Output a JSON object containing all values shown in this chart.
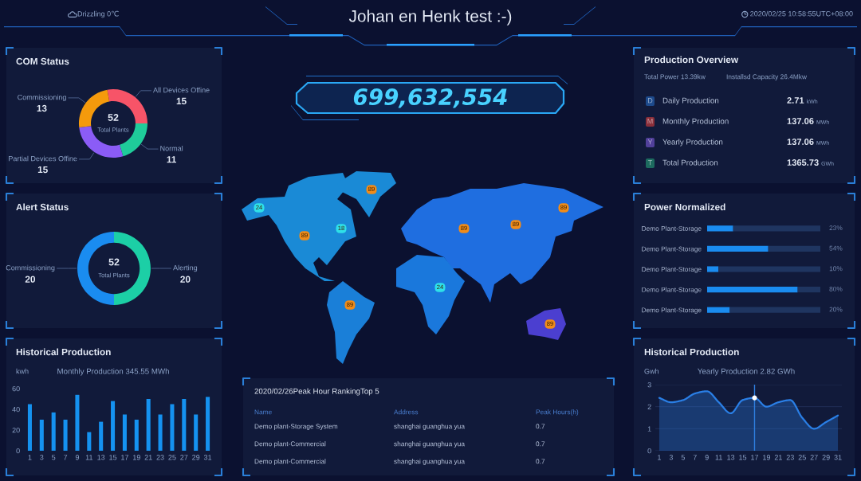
{
  "chart_data": [
    {
      "type": "other",
      "title": "Johan en Henk test :-)",
      "annotations": [
        "Drizzling 0℃",
        "2020/02/25 10:58:55UTC+08:00"
      ]
    },
    {
      "type": "donut",
      "title": "COM Status",
      "categories": [
        "All Devices Offine",
        "Normal",
        "Partial Devices Offine",
        "Commissioning"
      ],
      "values": [
        15,
        11,
        15,
        13
      ],
      "colors": [
        "#f75468",
        "#1fcc9a",
        "#8b5cf6",
        "#f59a0c"
      ],
      "data_labels": true,
      "annotations": [
        "52",
        "Total Plants"
      ]
    },
    {
      "type": "other",
      "annotations": [
        "699,632,554"
      ]
    },
    {
      "type": "other",
      "title": "Production Overview",
      "annotations": [
        "Total Power 13.39kw",
        "Installsd Capacity 26.4Mkw",
        "D",
        "Daily Production",
        "2.71",
        "kWh",
        "M",
        "Monthly Production",
        "137.06",
        "MWh",
        "Y",
        "Yearly Production",
        "137.06",
        "MWh",
        "T",
        "Total Production",
        "1365.73",
        "GWh"
      ],
      "colors": [
        "#1d4a8c",
        "#8a2f3a",
        "#51409a",
        "#1d6b5f"
      ]
    },
    {
      "type": "other",
      "annotations": [
        "89",
        "24",
        "89",
        "89",
        "18",
        "89",
        "89",
        "24",
        "89",
        "89"
      ],
      "colors": [
        "#f08c1a",
        "#2fe0e8",
        "#f08c1a",
        "#f08c1a",
        "#2fe0e8",
        "#f08c1a",
        "#f08c1a",
        "#2fe0e8",
        "#f08c1a",
        "#f08c1a"
      ]
    },
    {
      "type": "donut",
      "title": "Alert Status",
      "categories": [
        "Alerting",
        "Commissioning"
      ],
      "values": [
        20,
        20
      ],
      "colors": [
        "#1ccfa6",
        "#1a8cf0"
      ],
      "data_labels": true,
      "annotations": [
        "52",
        "Total Plants"
      ]
    },
    {
      "type": "bar",
      "orientation": "horizontal",
      "stacked": true,
      "title": "Power Normalized",
      "categories": [
        "Demo Plant-Storage",
        "Demo Plant-Storage",
        "Demo Plant-Storage",
        "Demo Plant-Storage",
        "Demo Plant-Storage"
      ],
      "series": [
        {
          "color": "#1a8cf0",
          "values": [
            23,
            54,
            10,
            80,
            20
          ],
          "value_labels": [
            "23%",
            "54%",
            "10%",
            "80%",
            "20%"
          ]
        },
        {
          "color": "#1f3560",
          "values": [
            77,
            46,
            90,
            20,
            80
          ]
        }
      ],
      "xlim": [
        0,
        100
      ],
      "tick_labels": "y"
    },
    {
      "type": "bar",
      "title": "Historical Production",
      "subtitle": "Monthly Production 345.55 MWh",
      "ylabel": "kwh",
      "categories": [
        "1",
        "3",
        "5",
        "7",
        "9",
        "11",
        "13",
        "15",
        "17",
        "19",
        "21",
        "23",
        "25",
        "27",
        "29",
        "31"
      ],
      "values": [
        45,
        30,
        37,
        30,
        54,
        18,
        28,
        48,
        35,
        30,
        50,
        35,
        45,
        50,
        35,
        52
      ],
      "color": "#1592f0",
      "ylim": [
        0,
        60
      ],
      "yticks": [
        0,
        20,
        40,
        60
      ]
    },
    {
      "type": "other",
      "title": "2020/02/26Peak Hour RankingTop 5",
      "categories": [
        "Name",
        "Address",
        "Peak Hours(h)"
      ],
      "annotations": [
        "Demo plant-Storage System",
        "shanghai guanghua yua",
        "0.7",
        "Demo plant-Commercial",
        "shanghai guanghua yua",
        "0.7",
        "Demo plant-Commercial",
        "shanghai guanghua yua",
        "0.7"
      ]
    },
    {
      "type": "area",
      "title": "Historical Production",
      "subtitle": "Yearly Production 2.82 GWh",
      "ylabel": "Gwh",
      "categories": [
        "1",
        "3",
        "5",
        "7",
        "9",
        "11",
        "13",
        "15",
        "17",
        "19",
        "21",
        "23",
        "25",
        "27",
        "29",
        "31"
      ],
      "series": [
        {
          "color": "#2a7fe6",
          "values": [
            2.4,
            2.2,
            2.3,
            2.6,
            2.7,
            2.2,
            1.7,
            2.3,
            2.4,
            2.0,
            2.2,
            2.3,
            1.5,
            1.0,
            1.3,
            1.6
          ]
        },
        {
          "type": "scatter",
          "color": "#ffffff",
          "x": [
            "17"
          ],
          "values": [
            2.4
          ]
        }
      ],
      "ylim": [
        0,
        3
      ],
      "yticks": [
        0,
        1,
        2,
        3
      ],
      "grid": "y",
      "ref_lines": [
        {
          "axis": "x",
          "value": "17",
          "color": "#2f7fe0"
        }
      ]
    }
  ]
}
